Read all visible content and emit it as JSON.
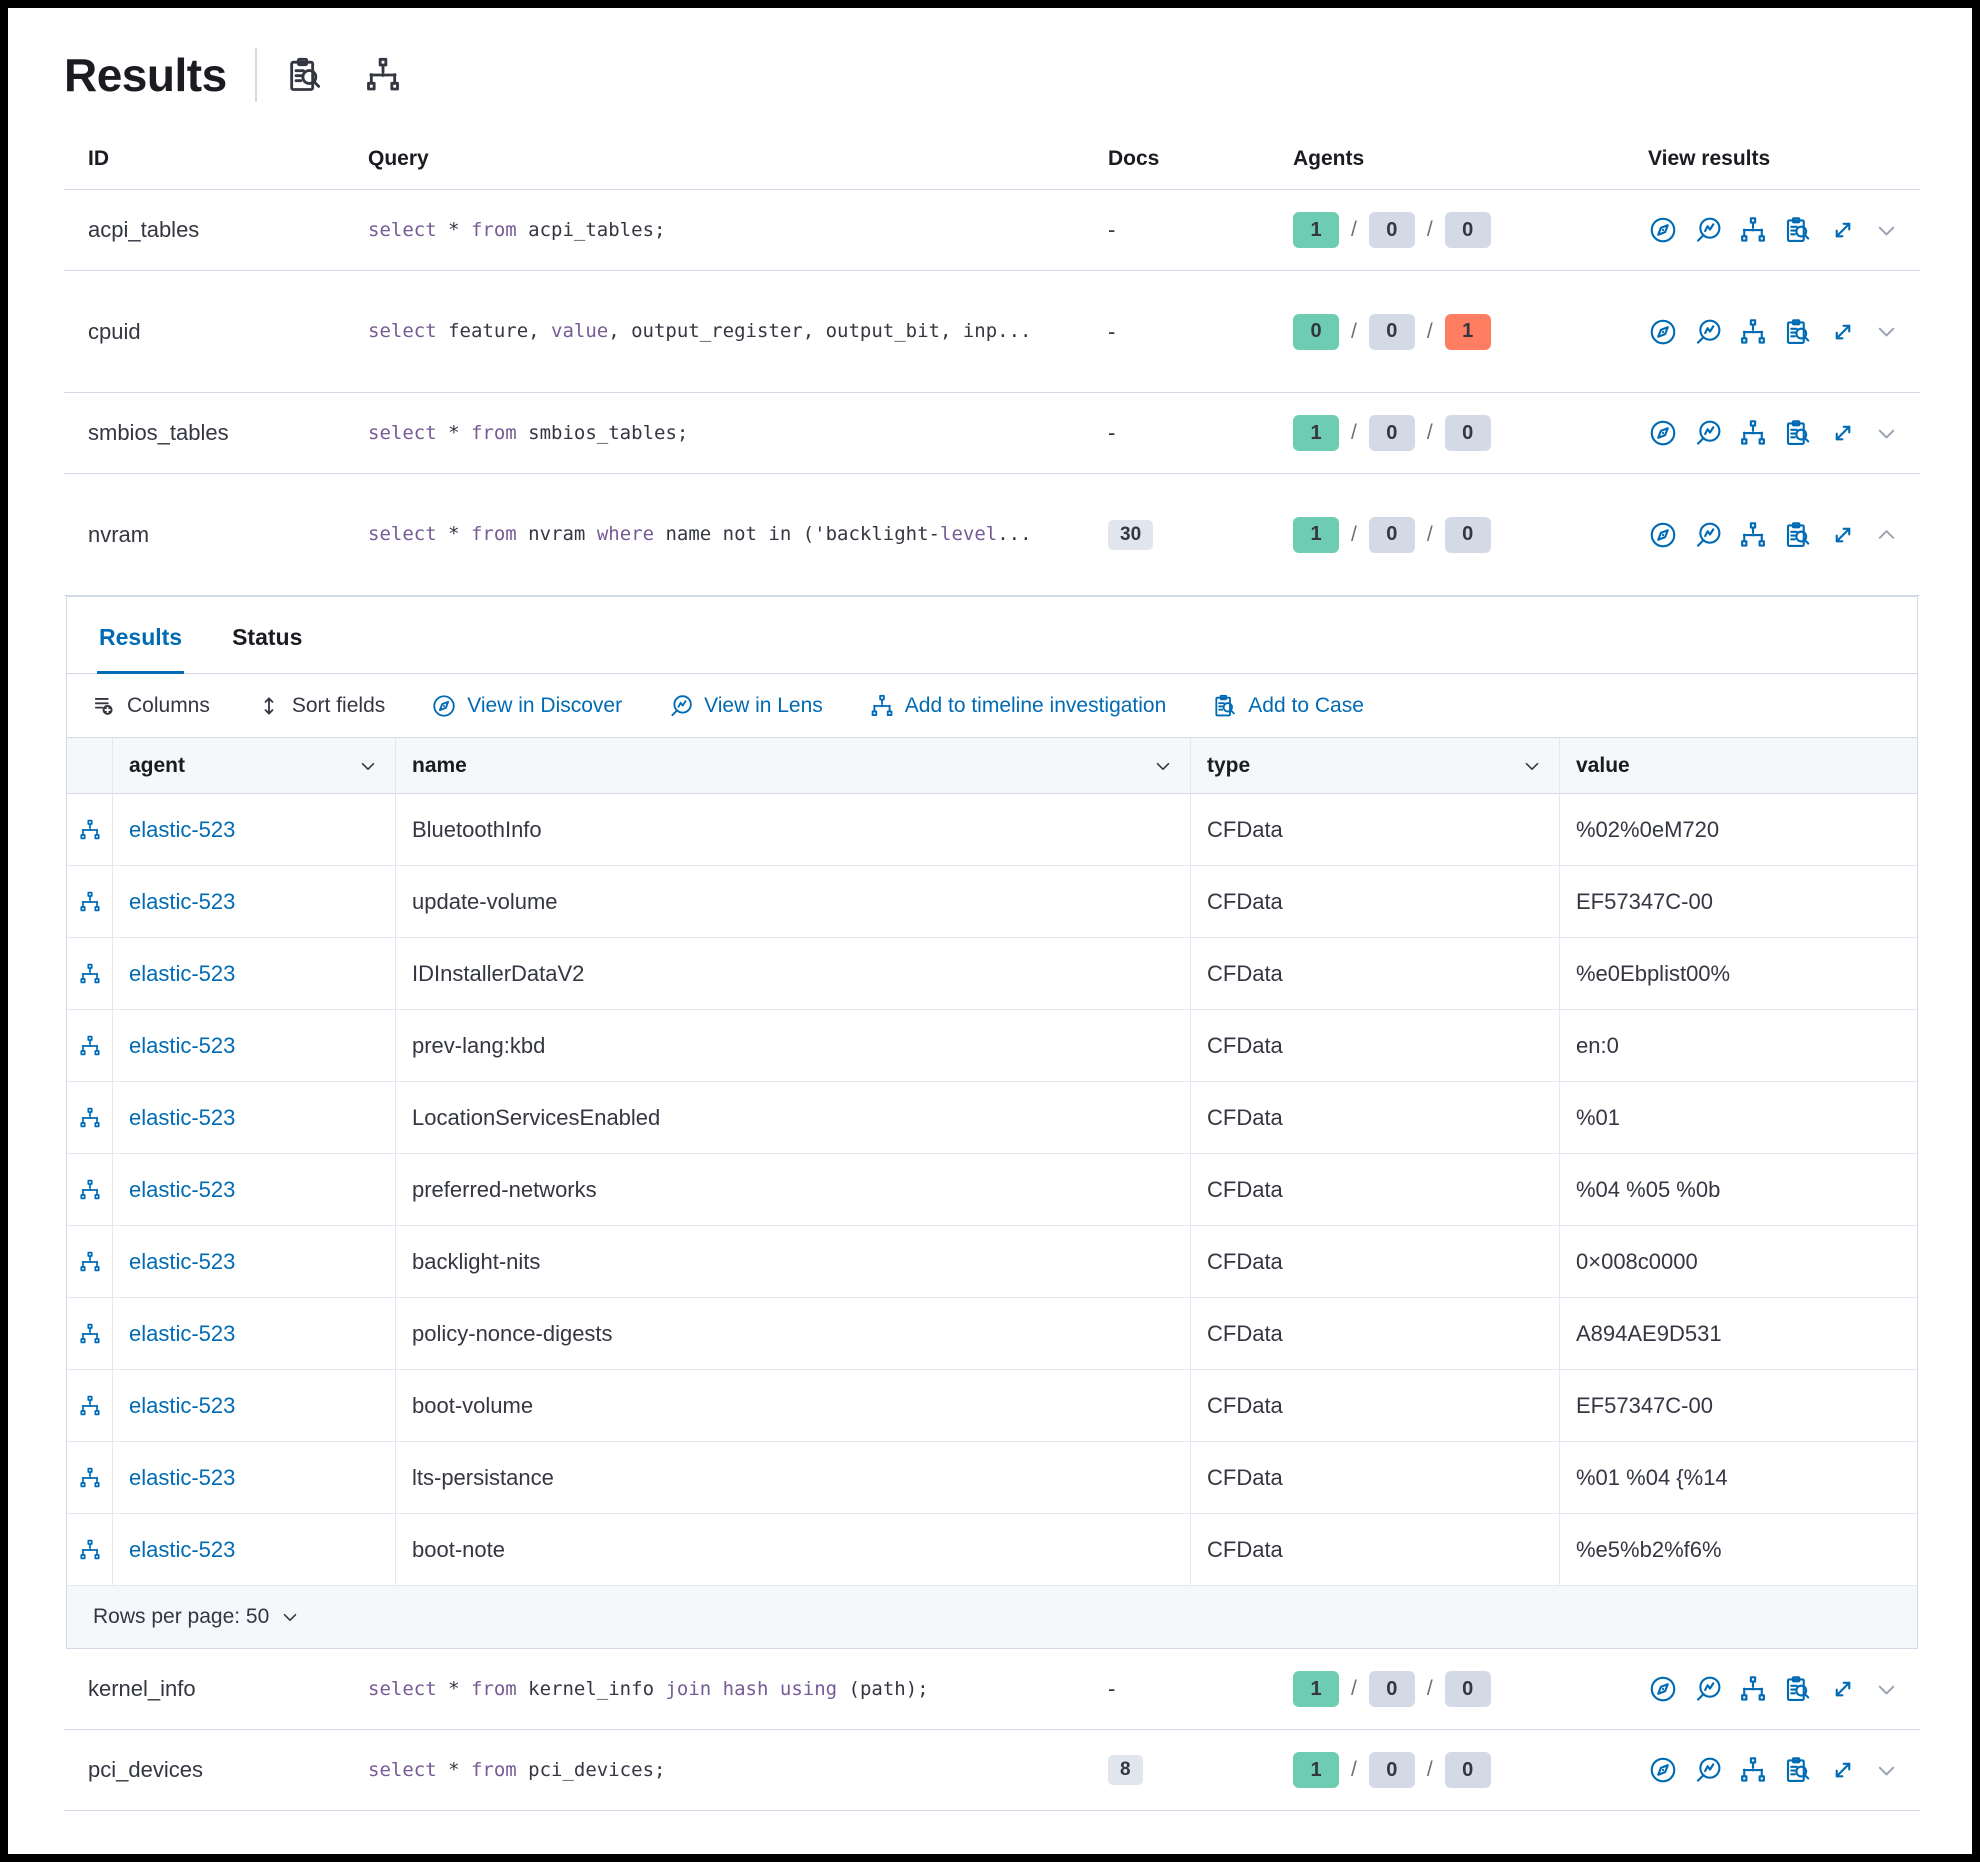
{
  "colors": {
    "primary": "#006BB4",
    "keyword": "#765B96",
    "text": "#343741",
    "title": "#1A1C21",
    "border": "#D3DAE6",
    "border_light": "#E3E8F0",
    "header_bg": "#F5F7FA",
    "badge_success": "#6DCCB1",
    "badge_default": "#D3DAE6",
    "badge_danger": "#FF7E62",
    "badge_docs": "#E0E5EE",
    "muted": "#69707D",
    "chevron": "#98A2B3"
  },
  "page": {
    "title": "Results"
  },
  "header_icons": [
    {
      "name": "inspect-icon"
    },
    {
      "name": "sitemap-icon"
    }
  ],
  "outer_table": {
    "columns": [
      "ID",
      "Query",
      "Docs",
      "Agents",
      "View results"
    ],
    "view_icons": [
      "discover-icon",
      "lens-icon",
      "sitemap-icon",
      "inspect-icon",
      "expand-icon"
    ],
    "rows": [
      {
        "id": "acpi_tables",
        "height": "h1",
        "query": [
          [
            "select",
            1
          ],
          [
            " * ",
            0
          ],
          [
            "from",
            1
          ],
          [
            " acpi_tables;",
            0
          ]
        ],
        "docs": "-",
        "docs_badge": false,
        "agents": [
          [
            "1",
            "success"
          ],
          [
            "0",
            "default"
          ],
          [
            "0",
            "default"
          ]
        ],
        "chevron": "down",
        "expanded": false
      },
      {
        "id": "cpuid",
        "height": "h2",
        "query": [
          [
            "select",
            1
          ],
          [
            " feature, ",
            0
          ],
          [
            "value",
            1
          ],
          [
            ", output_register, output_bit, inp...",
            0
          ]
        ],
        "docs": "-",
        "docs_badge": false,
        "agents": [
          [
            "0",
            "success"
          ],
          [
            "0",
            "default"
          ],
          [
            "1",
            "danger"
          ]
        ],
        "chevron": "down",
        "expanded": false
      },
      {
        "id": "smbios_tables",
        "height": "h1",
        "query": [
          [
            "select",
            1
          ],
          [
            " * ",
            0
          ],
          [
            "from",
            1
          ],
          [
            " smbios_tables;",
            0
          ]
        ],
        "docs": "-",
        "docs_badge": false,
        "agents": [
          [
            "1",
            "success"
          ],
          [
            "0",
            "default"
          ],
          [
            "0",
            "default"
          ]
        ],
        "chevron": "down",
        "expanded": false
      },
      {
        "id": "nvram",
        "height": "h2",
        "query": [
          [
            "select",
            1
          ],
          [
            " * ",
            0
          ],
          [
            "from",
            1
          ],
          [
            " nvram ",
            0
          ],
          [
            "where",
            1
          ],
          [
            " name not in ('backlight-",
            0
          ],
          [
            "level",
            1
          ],
          [
            "...",
            0
          ]
        ],
        "docs": "30",
        "docs_badge": true,
        "agents": [
          [
            "1",
            "success"
          ],
          [
            "0",
            "default"
          ],
          [
            "0",
            "default"
          ]
        ],
        "chevron": "up",
        "expanded": true
      },
      {
        "id": "kernel_info",
        "height": "h1",
        "query": [
          [
            "select",
            1
          ],
          [
            " * ",
            0
          ],
          [
            "from",
            1
          ],
          [
            " kernel_info ",
            0
          ],
          [
            "join",
            1
          ],
          [
            " ",
            0
          ],
          [
            "hash",
            1
          ],
          [
            " ",
            0
          ],
          [
            "using",
            1
          ],
          [
            " (path);",
            0
          ]
        ],
        "docs": "-",
        "docs_badge": false,
        "agents": [
          [
            "1",
            "success"
          ],
          [
            "0",
            "default"
          ],
          [
            "0",
            "default"
          ]
        ],
        "chevron": "down",
        "expanded": false
      },
      {
        "id": "pci_devices",
        "height": "h1",
        "query": [
          [
            "select",
            1
          ],
          [
            " * ",
            0
          ],
          [
            "from",
            1
          ],
          [
            " pci_devices;",
            0
          ]
        ],
        "docs": "8",
        "docs_badge": true,
        "agents": [
          [
            "1",
            "success"
          ],
          [
            "0",
            "default"
          ],
          [
            "0",
            "default"
          ]
        ],
        "chevron": "down",
        "expanded": false
      }
    ]
  },
  "panel": {
    "tabs": [
      {
        "label": "Results",
        "active": true
      },
      {
        "label": "Status",
        "active": false
      }
    ],
    "toolbar": [
      {
        "label": "Columns",
        "icon": "columns-icon",
        "style": "text"
      },
      {
        "label": "Sort fields",
        "icon": "sort-icon",
        "style": "text"
      },
      {
        "label": "View in Discover",
        "icon": "discover-icon",
        "style": "primary"
      },
      {
        "label": "View in Lens",
        "icon": "lens-icon",
        "style": "primary"
      },
      {
        "label": "Add to timeline investigation",
        "icon": "sitemap-icon",
        "style": "primary"
      },
      {
        "label": "Add to Case",
        "icon": "inspect-icon",
        "style": "primary"
      }
    ],
    "grid": {
      "columns": [
        {
          "label": "agent",
          "sortable": true
        },
        {
          "label": "name",
          "sortable": true
        },
        {
          "label": "type",
          "sortable": true
        },
        {
          "label": "value",
          "sortable": false
        }
      ],
      "row_icon": "sitemap-icon",
      "rows": [
        {
          "agent": "elastic-523",
          "name": "BluetoothInfo",
          "type": "CFData",
          "value": "%02%0eM720"
        },
        {
          "agent": "elastic-523",
          "name": "update-volume",
          "type": "CFData",
          "value": "EF57347C-00"
        },
        {
          "agent": "elastic-523",
          "name": "IDInstallerDataV2",
          "type": "CFData",
          "value": "%e0Ebplist00%"
        },
        {
          "agent": "elastic-523",
          "name": "prev-lang:kbd",
          "type": "CFData",
          "value": "en:0"
        },
        {
          "agent": "elastic-523",
          "name": "LocationServicesEnabled",
          "type": "CFData",
          "value": "%01"
        },
        {
          "agent": "elastic-523",
          "name": "preferred-networks",
          "type": "CFData",
          "value": "%04 %05 %0b"
        },
        {
          "agent": "elastic-523",
          "name": "backlight-nits",
          "type": "CFData",
          "value": "0×008c0000"
        },
        {
          "agent": "elastic-523",
          "name": "policy-nonce-digests",
          "type": "CFData",
          "value": "A894AE9D531"
        },
        {
          "agent": "elastic-523",
          "name": "boot-volume",
          "type": "CFData",
          "value": "EF57347C-00"
        },
        {
          "agent": "elastic-523",
          "name": "lts-persistance",
          "type": "CFData",
          "value": "%01 %04 {%14"
        },
        {
          "agent": "elastic-523",
          "name": "boot-note",
          "type": "CFData",
          "value": "%e5%b2%f6%"
        }
      ]
    },
    "footer": {
      "rows_per_page": "Rows per page: 50"
    }
  }
}
